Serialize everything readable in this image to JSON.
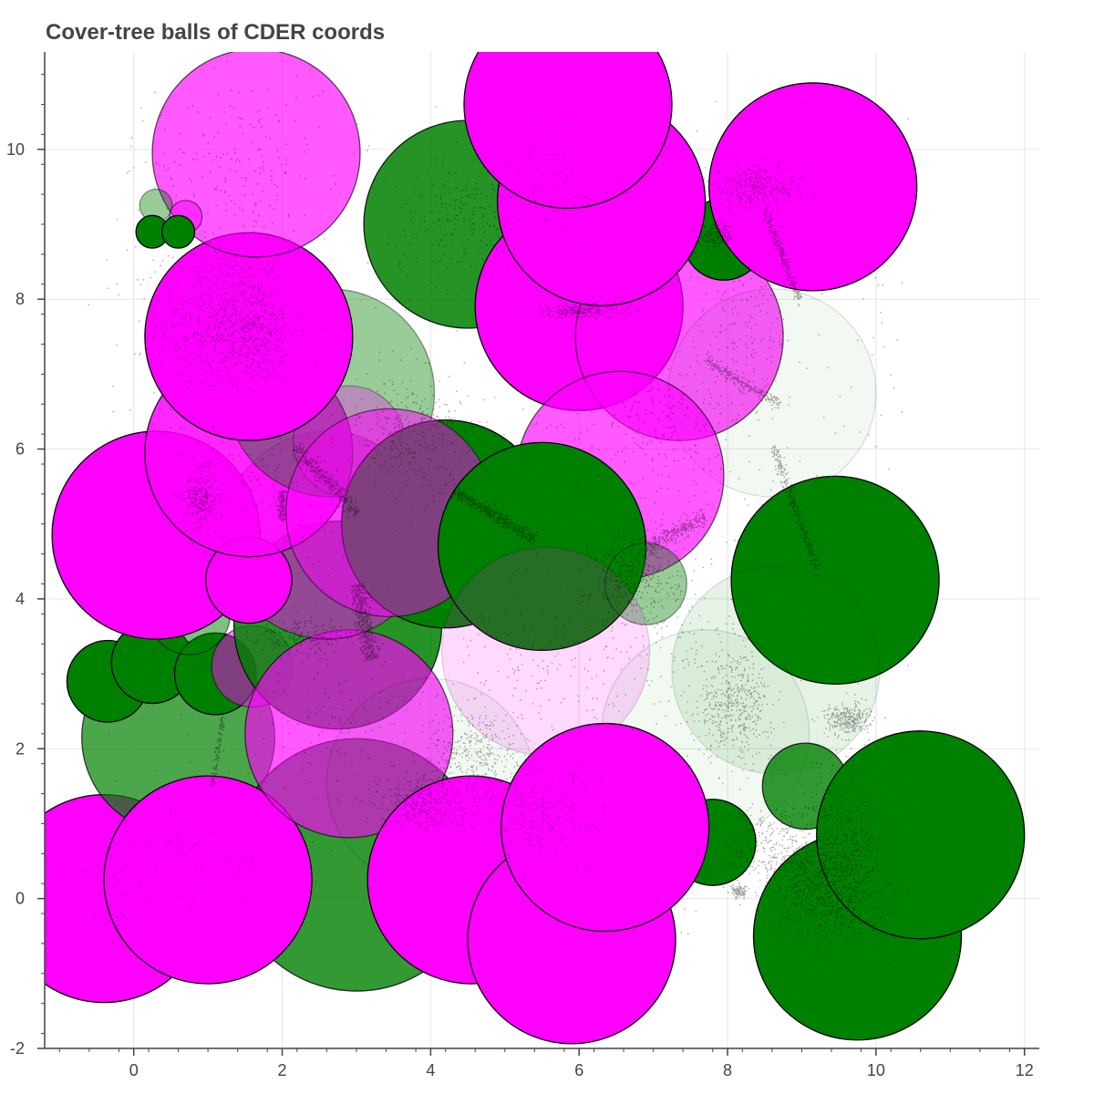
{
  "chart_data": {
    "type": "scatter",
    "title": "Cover-tree balls of CDER coords",
    "xlabel": "",
    "ylabel": "",
    "xlim": [
      -1.2,
      12.2
    ],
    "ylim": [
      -2.0,
      11.3
    ],
    "x_ticks": [
      0,
      2,
      4,
      6,
      8,
      10,
      12
    ],
    "y_ticks": [
      -2,
      0,
      2,
      4,
      6,
      8,
      10
    ],
    "grid": true,
    "legend": "none",
    "colors": {
      "green": "#008000",
      "magenta": "#ff00ff",
      "points": "#000000",
      "grid": "#e5e5e5",
      "axis": "#444444"
    },
    "circles": [
      {
        "x": -0.4,
        "y": 0.0,
        "r": 1.4,
        "color": "magenta",
        "alpha": 1.0
      },
      {
        "x": 0.6,
        "y": 2.15,
        "r": 1.3,
        "color": "green",
        "alpha": 0.7
      },
      {
        "x": 3.0,
        "y": 0.45,
        "r": 1.7,
        "color": "green",
        "alpha": 0.8
      },
      {
        "x": 1.0,
        "y": 0.25,
        "r": 1.4,
        "color": "magenta",
        "alpha": 1.0
      },
      {
        "x": -0.35,
        "y": 2.9,
        "r": 0.55,
        "color": "green",
        "alpha": 1.0
      },
      {
        "x": 0.25,
        "y": 3.15,
        "r": 0.55,
        "color": "green",
        "alpha": 1.0
      },
      {
        "x": 1.1,
        "y": 3.0,
        "r": 0.55,
        "color": "green",
        "alpha": 1.0
      },
      {
        "x": 1.6,
        "y": 3.1,
        "r": 0.55,
        "color": "magenta",
        "alpha": 0.5
      },
      {
        "x": 0.75,
        "y": 3.8,
        "r": 0.55,
        "color": "green",
        "alpha": 0.5
      },
      {
        "x": 2.75,
        "y": 3.65,
        "r": 1.4,
        "color": "green",
        "alpha": 0.85
      },
      {
        "x": 2.9,
        "y": 2.2,
        "r": 1.4,
        "color": "magenta",
        "alpha": 0.65
      },
      {
        "x": 2.6,
        "y": 4.85,
        "r": 1.4,
        "color": "magenta",
        "alpha": 0.5
      },
      {
        "x": 0.3,
        "y": 4.85,
        "r": 1.4,
        "color": "magenta",
        "alpha": 1.0
      },
      {
        "x": 1.55,
        "y": 4.25,
        "r": 0.58,
        "color": "magenta",
        "alpha": 1.0
      },
      {
        "x": 1.55,
        "y": 5.95,
        "r": 1.4,
        "color": "magenta",
        "alpha": 0.85
      },
      {
        "x": 2.65,
        "y": 6.75,
        "r": 1.4,
        "color": "green",
        "alpha": 0.4
      },
      {
        "x": 2.9,
        "y": 6.1,
        "r": 0.75,
        "color": "magenta",
        "alpha": 0.3
      },
      {
        "x": 4.2,
        "y": 5.0,
        "r": 1.4,
        "color": "green",
        "alpha": 1.0
      },
      {
        "x": 3.45,
        "y": 5.15,
        "r": 1.4,
        "color": "magenta",
        "alpha": 0.5
      },
      {
        "x": 1.55,
        "y": 7.5,
        "r": 1.4,
        "color": "magenta",
        "alpha": 1.0
      },
      {
        "x": 1.65,
        "y": 9.95,
        "r": 1.4,
        "color": "magenta",
        "alpha": 0.65
      },
      {
        "x": 0.3,
        "y": 9.25,
        "r": 0.22,
        "color": "green",
        "alpha": 0.4
      },
      {
        "x": 0.7,
        "y": 9.1,
        "r": 0.22,
        "color": "magenta",
        "alpha": 0.5
      },
      {
        "x": 0.25,
        "y": 8.9,
        "r": 0.22,
        "color": "green",
        "alpha": 1.0
      },
      {
        "x": 0.6,
        "y": 8.9,
        "r": 0.22,
        "color": "green",
        "alpha": 1.0
      },
      {
        "x": 4.5,
        "y": 9.0,
        "r": 1.4,
        "color": "green",
        "alpha": 0.85
      },
      {
        "x": 6.0,
        "y": 7.9,
        "r": 1.4,
        "color": "magenta",
        "alpha": 1.0
      },
      {
        "x": 7.35,
        "y": 7.5,
        "r": 1.4,
        "color": "magenta",
        "alpha": 0.65
      },
      {
        "x": 8.6,
        "y": 6.75,
        "r": 1.4,
        "color": "green",
        "alpha": 0.05
      },
      {
        "x": 7.95,
        "y": 8.8,
        "r": 0.55,
        "color": "green",
        "alpha": 1.0
      },
      {
        "x": 6.3,
        "y": 9.3,
        "r": 1.4,
        "color": "magenta",
        "alpha": 1.0
      },
      {
        "x": 5.85,
        "y": 10.6,
        "r": 1.4,
        "color": "magenta",
        "alpha": 1.0
      },
      {
        "x": 9.15,
        "y": 9.5,
        "r": 1.4,
        "color": "magenta",
        "alpha": 1.0
      },
      {
        "x": 6.55,
        "y": 5.65,
        "r": 1.4,
        "color": "magenta",
        "alpha": 0.65
      },
      {
        "x": 5.5,
        "y": 4.7,
        "r": 1.4,
        "color": "green",
        "alpha": 1.0
      },
      {
        "x": 6.9,
        "y": 4.2,
        "r": 0.55,
        "color": "green",
        "alpha": 0.4
      },
      {
        "x": 5.55,
        "y": 3.3,
        "r": 1.4,
        "color": "magenta",
        "alpha": 0.15
      },
      {
        "x": 9.45,
        "y": 4.25,
        "r": 1.4,
        "color": "green",
        "alpha": 1.0
      },
      {
        "x": 8.65,
        "y": 3.05,
        "r": 1.4,
        "color": "green",
        "alpha": 0.1
      },
      {
        "x": 7.7,
        "y": 2.2,
        "r": 1.4,
        "color": "green",
        "alpha": 0.05
      },
      {
        "x": 4.0,
        "y": 1.55,
        "r": 1.4,
        "color": "green",
        "alpha": 0.05
      },
      {
        "x": 9.05,
        "y": 1.5,
        "r": 0.58,
        "color": "green",
        "alpha": 0.8
      },
      {
        "x": 7.8,
        "y": 0.75,
        "r": 0.58,
        "color": "green",
        "alpha": 1.0
      },
      {
        "x": 4.55,
        "y": 0.25,
        "r": 1.4,
        "color": "magenta",
        "alpha": 1.0
      },
      {
        "x": 5.9,
        "y": -0.55,
        "r": 1.4,
        "color": "magenta",
        "alpha": 1.0
      },
      {
        "x": 6.35,
        "y": 0.95,
        "r": 1.4,
        "color": "magenta",
        "alpha": 1.0
      },
      {
        "x": 9.75,
        "y": -0.5,
        "r": 1.4,
        "color": "green",
        "alpha": 1.0
      },
      {
        "x": 10.6,
        "y": 0.85,
        "r": 1.4,
        "color": "green",
        "alpha": 1.0
      }
    ],
    "clusters": [
      {
        "x": 1.2,
        "y": 7.7,
        "sx": 0.45,
        "sy": 0.5,
        "n": 700
      },
      {
        "x": 1.6,
        "y": 7.6,
        "sx": 0.3,
        "sy": 0.35,
        "n": 400
      },
      {
        "x": 1.4,
        "y": 9.8,
        "sx": 0.55,
        "sy": 0.6,
        "n": 180
      },
      {
        "x": 0.9,
        "y": 5.35,
        "sx": 0.12,
        "sy": 0.18,
        "n": 260
      },
      {
        "x": 1.3,
        "y": 5.6,
        "sx": 0.5,
        "sy": 0.5,
        "n": 150
      },
      {
        "x": 3.7,
        "y": 6.2,
        "sx": 0.35,
        "sy": 0.4,
        "n": 300
      },
      {
        "x": 4.35,
        "y": 9.1,
        "sx": 0.45,
        "sy": 0.35,
        "n": 180
      },
      {
        "x": 5.6,
        "y": 9.6,
        "sx": 0.45,
        "sy": 0.5,
        "n": 160
      },
      {
        "x": 6.0,
        "y": 7.85,
        "sx": 0.35,
        "sy": 0.05,
        "n": 250
      },
      {
        "x": 8.4,
        "y": 9.5,
        "sx": 0.35,
        "sy": 0.15,
        "n": 350
      },
      {
        "x": 7.85,
        "y": 8.85,
        "sx": 0.12,
        "sy": 0.08,
        "n": 160
      },
      {
        "x": 8.15,
        "y": 7.4,
        "sx": 0.35,
        "sy": 0.6,
        "n": 200
      },
      {
        "x": 7.1,
        "y": 6.3,
        "sx": 0.45,
        "sy": 0.5,
        "n": 180
      },
      {
        "x": 6.75,
        "y": 4.3,
        "sx": 0.3,
        "sy": 0.35,
        "n": 400
      },
      {
        "x": 5.5,
        "y": 3.0,
        "sx": 0.7,
        "sy": 0.5,
        "n": 150
      },
      {
        "x": 8.1,
        "y": 2.6,
        "sx": 0.25,
        "sy": 0.35,
        "n": 450
      },
      {
        "x": 9.6,
        "y": 2.4,
        "sx": 0.15,
        "sy": 0.1,
        "n": 300
      },
      {
        "x": 4.6,
        "y": 2.0,
        "sx": 0.3,
        "sy": 0.3,
        "n": 300
      },
      {
        "x": 3.9,
        "y": 1.3,
        "sx": 0.3,
        "sy": 0.2,
        "n": 400
      },
      {
        "x": 5.4,
        "y": 1.1,
        "sx": 0.5,
        "sy": 0.4,
        "n": 350
      },
      {
        "x": 8.6,
        "y": 0.7,
        "sx": 0.3,
        "sy": 0.3,
        "n": 250
      },
      {
        "x": 8.15,
        "y": 0.1,
        "sx": 0.05,
        "sy": 0.04,
        "n": 120
      },
      {
        "x": 9.3,
        "y": 0.1,
        "sx": 0.35,
        "sy": 0.35,
        "n": 700
      },
      {
        "x": 9.6,
        "y": 0.7,
        "sx": 0.3,
        "sy": 0.5,
        "n": 500
      },
      {
        "x": 0.0,
        "y": 0.2,
        "sx": 0.55,
        "sy": 0.4,
        "n": 120
      },
      {
        "x": 1.0,
        "y": 0.6,
        "sx": 0.45,
        "sy": 0.4,
        "n": 100
      },
      {
        "x": 2.3,
        "y": 3.5,
        "sx": 0.35,
        "sy": 0.12,
        "n": 200
      },
      {
        "x": 2.7,
        "y": 2.4,
        "sx": 0.55,
        "sy": 0.45,
        "n": 100
      },
      {
        "x": 5.0,
        "y": 5.5,
        "sx": 0.7,
        "sy": 0.6,
        "n": 80
      },
      {
        "x": 7.4,
        "y": 3.3,
        "sx": 0.5,
        "sy": 0.5,
        "n": 80
      }
    ],
    "streaks": [
      {
        "x1": 2.15,
        "y1": 6.05,
        "x2": 3.0,
        "y2": 5.15,
        "w": 0.05,
        "n": 380
      },
      {
        "x1": 4.3,
        "y1": 5.45,
        "x2": 5.4,
        "y2": 4.8,
        "w": 0.04,
        "n": 450
      },
      {
        "x1": 3.0,
        "y1": 4.2,
        "x2": 3.2,
        "y2": 3.2,
        "w": 0.06,
        "n": 500
      },
      {
        "x1": 2.0,
        "y1": 5.45,
        "x2": 1.98,
        "y2": 5.05,
        "w": 0.025,
        "n": 160
      },
      {
        "x1": 1.2,
        "y1": 2.5,
        "x2": 1.05,
        "y2": 1.5,
        "w": 0.02,
        "n": 120
      },
      {
        "x1": 8.6,
        "y1": 6.05,
        "x2": 9.2,
        "y2": 4.4,
        "w": 0.03,
        "n": 300
      },
      {
        "x1": 8.5,
        "y1": 9.2,
        "x2": 8.95,
        "y2": 8.0,
        "w": 0.03,
        "n": 250
      },
      {
        "x1": 7.7,
        "y1": 7.2,
        "x2": 8.7,
        "y2": 6.6,
        "w": 0.03,
        "n": 220
      },
      {
        "x1": 6.9,
        "y1": 4.7,
        "x2": 7.7,
        "y2": 5.1,
        "w": 0.06,
        "n": 300
      }
    ],
    "scatter_seed": 12345,
    "background_points": 600
  }
}
